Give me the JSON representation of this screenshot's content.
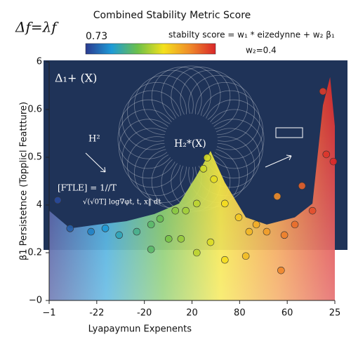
{
  "chart_data": {
    "type": "scatter",
    "title": "Combined Stability Metric Score",
    "formula_left": "Δf=λf",
    "formula_right": "stabilty score = w₁ * eizedynne + w₂ β₁",
    "formula_weight": "w₂=0.4",
    "colorbar_label": "0.73",
    "colormap": [
      "#2b3a8f",
      "#1e9bd7",
      "#6cc04a",
      "#f4e11c",
      "#f08c2a",
      "#d9262a"
    ],
    "x_label": "Lyapaymun Expenents",
    "y_label": "β1 Persistetnce (Topplicl Feattture)",
    "xlim": [
      0,
      6
    ],
    "ylim": [
      0,
      5
    ],
    "xticks": [
      {
        "value": 0,
        "label": "−1"
      },
      {
        "value": 1,
        "label": "-22"
      },
      {
        "value": 2,
        "label": "-20"
      },
      {
        "value": 3,
        "label": "20"
      },
      {
        "value": 4,
        "label": "80"
      },
      {
        "value": 5,
        "label": "60"
      },
      {
        "value": 6,
        "label": "25"
      }
    ],
    "yticks": [
      {
        "value": 0,
        "label": "−0"
      },
      {
        "value": 1,
        "label": "0.2"
      },
      {
        "value": 2,
        "label": "4"
      },
      {
        "value": 3,
        "label": "0.5"
      },
      {
        "value": 4,
        "label": "0.6"
      },
      {
        "value": 5,
        "label": "6"
      }
    ],
    "annotations": [
      "Δ₁+ (X)",
      "H²",
      "H₂*(X)",
      "[FTLE] =  1//T",
      "√(√0T] log∇φt, t, x‖ dt"
    ],
    "surface": {
      "x": [
        0,
        0.44,
        1.03,
        1.62,
        2.21,
        2.73,
        3.1,
        3.39,
        3.69,
        4.13,
        4.57,
        5.16,
        5.53,
        5.75,
        5.9,
        6
      ],
      "values": [
        1.88,
        1.51,
        1.59,
        1.66,
        1.81,
        2.03,
        2.62,
        3.13,
        2.47,
        1.74,
        1.59,
        1.74,
        2.03,
        4.09,
        4.68,
        3.65
      ]
    },
    "x": [
      0.18,
      0.44,
      0.88,
      1.18,
      1.47,
      1.84,
      2.14,
      2.33,
      2.65,
      2.77,
      2.87,
      3.1,
      3.24,
      3.32,
      3.46,
      3.69,
      3.98,
      4.2,
      4.35,
      4.57,
      4.79,
      4.94,
      5.16,
      5.31,
      5.53,
      5.75,
      5.82,
      5.97,
      2.14,
      3.1,
      3.69,
      4.13,
      4.87,
      3.39,
      2.51
    ],
    "values": [
      2.1,
      1.51,
      1.44,
      1.51,
      1.37,
      1.44,
      1.59,
      1.71,
      1.88,
      1.29,
      1.88,
      2.03,
      2.76,
      2.99,
      2.54,
      2.03,
      1.74,
      1.44,
      1.59,
      1.44,
      2.18,
      1.37,
      1.59,
      2.4,
      1.88,
      4.38,
      3.06,
      2.91,
      1.07,
      1.0,
      0.85,
      0.93,
      0.63,
      1.22,
      1.29
    ]
  }
}
